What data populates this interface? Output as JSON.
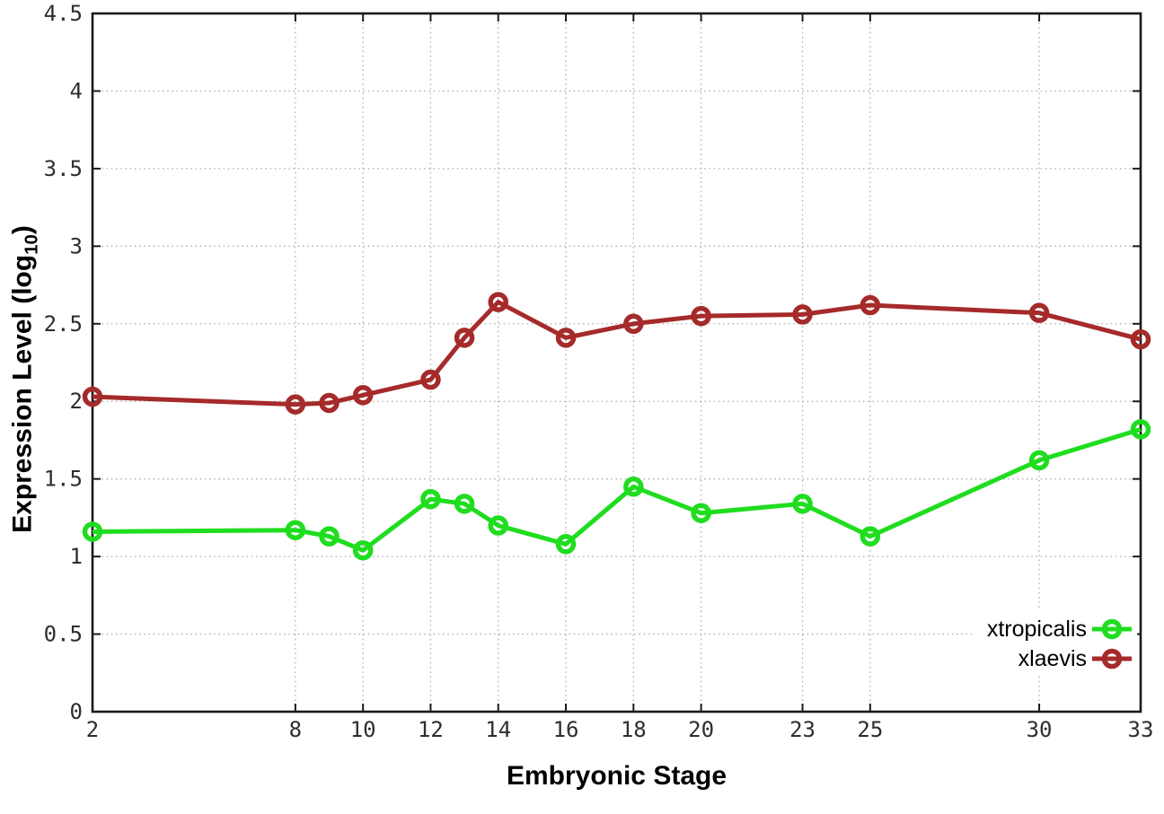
{
  "chart_data": {
    "type": "line",
    "title": "",
    "xlabel": "Embryonic Stage",
    "ylabel_prefix": "Expression Level (log",
    "ylabel_sub": "10",
    "ylabel_suffix": ")",
    "xlim": [
      2,
      33
    ],
    "ylim": [
      0,
      4.5
    ],
    "grid": true,
    "legend_position": "bottom-right",
    "x_ticks": [
      2,
      8,
      10,
      12,
      14,
      16,
      18,
      20,
      23,
      25,
      30,
      33
    ],
    "y_ticks": [
      0,
      0.5,
      1,
      1.5,
      2,
      2.5,
      3,
      3.5,
      4,
      4.5
    ],
    "x": [
      2,
      8,
      9,
      10,
      12,
      13,
      14,
      16,
      18,
      20,
      23,
      25,
      30,
      33
    ],
    "series": [
      {
        "name": "xtropicalis",
        "color": "#1fdd1f",
        "values": [
          1.16,
          1.17,
          1.13,
          1.04,
          1.37,
          1.34,
          1.2,
          1.08,
          1.45,
          1.28,
          1.34,
          1.13,
          1.62,
          1.82
        ]
      },
      {
        "name": "xlaevis",
        "color": "#a52a2a",
        "values": [
          2.03,
          1.98,
          1.99,
          2.04,
          2.14,
          2.41,
          2.64,
          2.41,
          2.5,
          2.55,
          2.56,
          2.62,
          2.57,
          2.4
        ]
      }
    ]
  },
  "style_colors": {
    "border": "#1a1a1a",
    "grid": "#b0b0b0",
    "tick_text": "#2e2e2e"
  }
}
